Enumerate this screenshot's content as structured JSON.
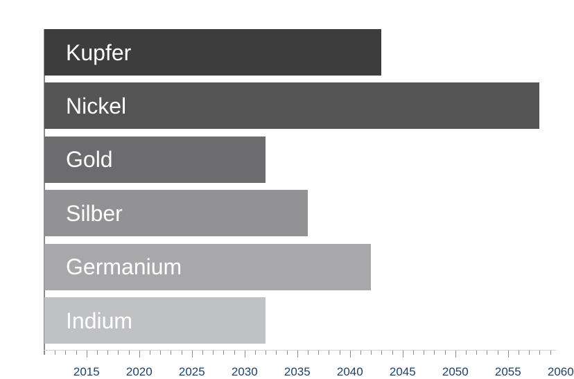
{
  "chart_data": {
    "type": "bar",
    "orientation": "horizontal",
    "categories": [
      "Kupfer",
      "Nickel",
      "Gold",
      "Silber",
      "Germanium",
      "Indium"
    ],
    "values": [
      2043,
      2058,
      2032,
      2036,
      2042,
      2032
    ],
    "bar_colors": [
      "#3d3d3d",
      "#545454",
      "#6c6c6e",
      "#929294",
      "#a8a8aa",
      "#c0c1c3"
    ],
    "label_colors": [
      "#ffffff",
      "#ffffff",
      "#ffffff",
      "#ffffff",
      "#ffffff",
      "#ffffff"
    ],
    "xlim": [
      2011,
      2061
    ],
    "x_ticks": [
      "2015",
      "2020",
      "2025",
      "2030",
      "2035",
      "2040",
      "2045",
      "2050",
      "2055",
      "2060"
    ],
    "tick_label_color": "#1f3f66",
    "title": "",
    "xlabel": "",
    "ylabel": "",
    "grid": false,
    "legend": "none"
  }
}
